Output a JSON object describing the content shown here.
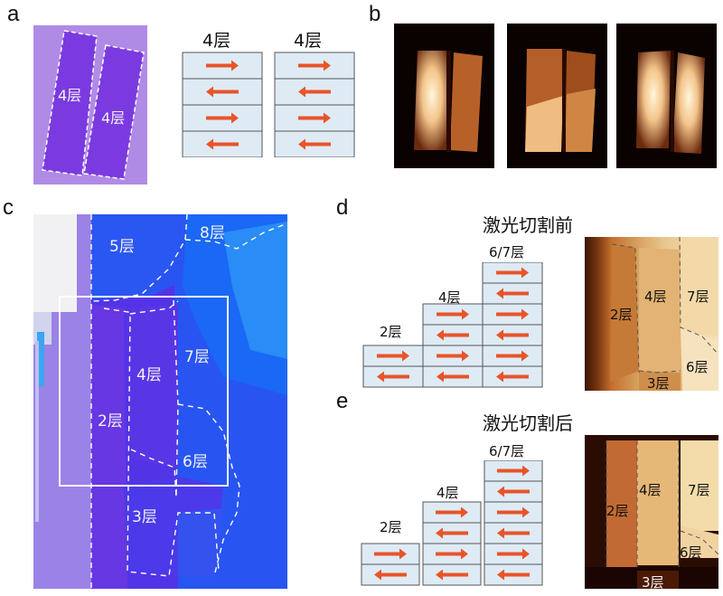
{
  "panels": {
    "a": "a",
    "b": "b",
    "c": "c",
    "d": "d",
    "e": "e"
  },
  "colors": {
    "arrow": "#e8542a",
    "cell_fill": "#deebf5",
    "cell_stroke": "#555555",
    "accent_laser": "#e8542a"
  },
  "panel_a": {
    "flake_labels": [
      "4层",
      "4层"
    ],
    "stack_titles": [
      "4层",
      "4层"
    ],
    "stack_arrows": [
      [
        "right",
        "left",
        "right",
        "left"
      ],
      [
        "right",
        "left",
        "right",
        "left"
      ]
    ]
  },
  "panel_b": {
    "image_count": 3
  },
  "panel_c": {
    "labels": {
      "l5": "5层",
      "l8": "8层",
      "l4": "4层",
      "l7": "7层",
      "l2": "2层",
      "l6": "6层",
      "l3": "3层"
    }
  },
  "panel_d": {
    "title": "激光切割前",
    "stack_labels": {
      "a": "6/7层",
      "b": "4层",
      "c": "2层"
    },
    "image_labels": {
      "a": "2层",
      "b": "4层",
      "c": "7层",
      "d": "6层",
      "e": "3层"
    }
  },
  "panel_e": {
    "title": "激光切割后",
    "stack_labels": {
      "a": "6/7层",
      "b": "4层",
      "c": "2层"
    },
    "image_labels": {
      "a": "2层",
      "b": "4层",
      "c": "7层",
      "d": "6层",
      "e": "3层"
    }
  }
}
